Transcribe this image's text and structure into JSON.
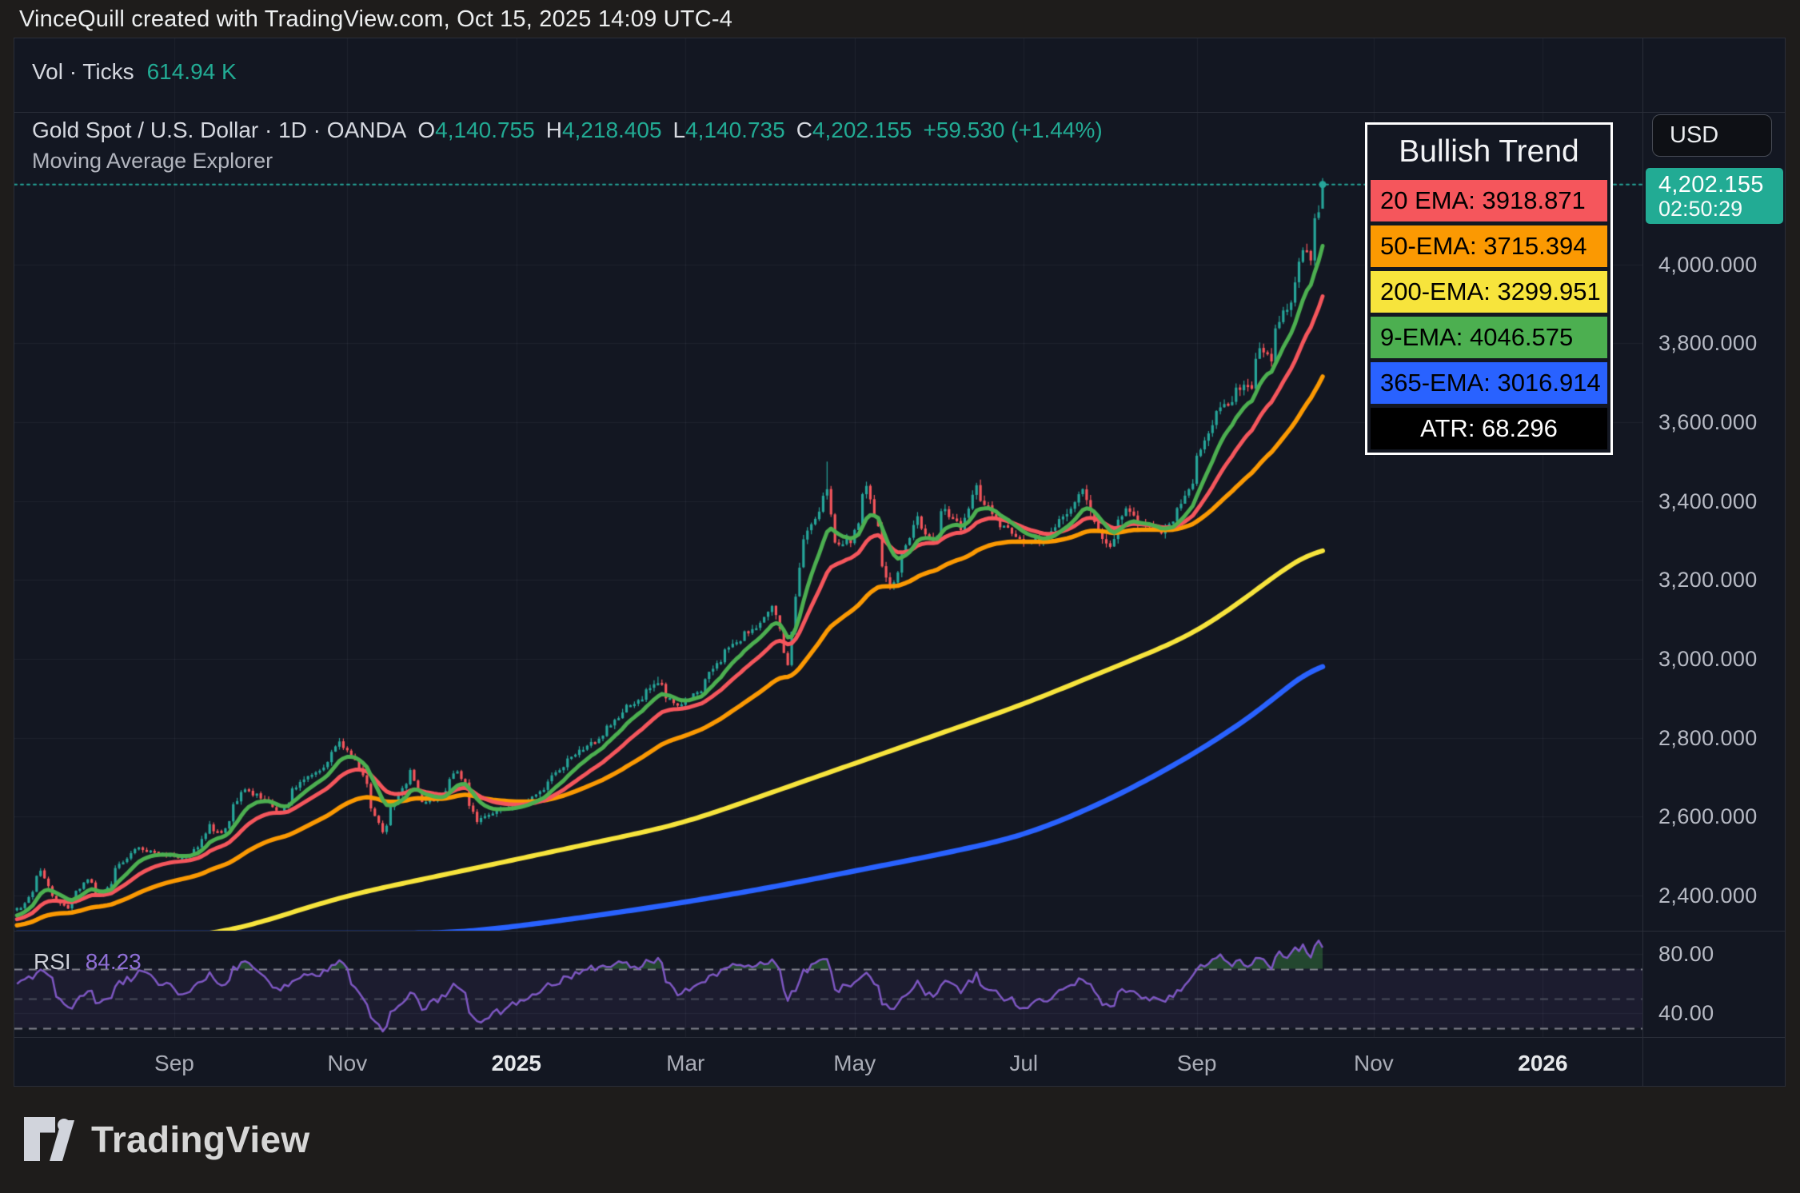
{
  "topbar": {
    "title": "VinceQuill created with TradingView.com, Oct 15, 2025 14:09 UTC-4"
  },
  "volume_pane": {
    "legend": "Vol · Ticks",
    "value": "614.94 K"
  },
  "main_pane": {
    "symbol_line": "Gold Spot / U.S. Dollar · 1D · OANDA",
    "ohlc": [
      {
        "k": "O",
        "v": "4,140.755"
      },
      {
        "k": "H",
        "v": "4,218.405"
      },
      {
        "k": "L",
        "v": "4,140.735"
      },
      {
        "k": "C",
        "v": "4,202.155"
      }
    ],
    "change": "+59.530 (+1.44%)",
    "indicator_line": "Moving Average Explorer"
  },
  "trend_box": {
    "title": "Bullish Trend",
    "rows": [
      {
        "text": "20 EMA: 3918.871",
        "bg": "#f5565c",
        "fg": "#000000",
        "center": false
      },
      {
        "text": "50-EMA: 3715.394",
        "bg": "#fb9902",
        "fg": "#000000",
        "center": false
      },
      {
        "text": "200-EMA: 3299.951",
        "bg": "#f7e43c",
        "fg": "#000000",
        "center": false
      },
      {
        "text": "9-EMA: 4046.575",
        "bg": "#4caf50",
        "fg": "#000000",
        "center": false
      },
      {
        "text": "365-EMA: 3016.914",
        "bg": "#2962ff",
        "fg": "#000000",
        "center": false
      },
      {
        "text": "ATR: 68.296",
        "bg": "#000000",
        "fg": "#ffffff",
        "center": true
      }
    ]
  },
  "price_axis": {
    "currency_button": "USD",
    "last_price": "4,202.155",
    "countdown": "02:50:29",
    "badge_color": "#22ab94",
    "labels": [
      "4,000.000",
      "3,800.000",
      "3,600.000",
      "3,400.000",
      "3,200.000",
      "3,000.000",
      "2,800.000",
      "2,600.000",
      "2,400.000"
    ],
    "rsi_labels": [
      "80.00",
      "40.00"
    ]
  },
  "time_axis": {
    "ticks": [
      {
        "label": "Sep",
        "date": "2024-09-01",
        "bold": false
      },
      {
        "label": "Nov",
        "date": "2024-11-01",
        "bold": false
      },
      {
        "label": "2025",
        "date": "2025-01-01",
        "bold": true
      },
      {
        "label": "Mar",
        "date": "2025-03-01",
        "bold": false
      },
      {
        "label": "May",
        "date": "2025-05-01",
        "bold": false
      },
      {
        "label": "Jul",
        "date": "2025-07-01",
        "bold": false
      },
      {
        "label": "Sep",
        "date": "2025-09-01",
        "bold": false
      },
      {
        "label": "Nov",
        "date": "2025-11-01",
        "bold": false
      },
      {
        "label": "2026",
        "date": "2026-01-01",
        "bold": true
      }
    ]
  },
  "rsi_pane": {
    "label": "RSI",
    "value": "84.23"
  },
  "footer": {
    "brand": "TradingView"
  },
  "chart_data": {
    "type": "candlestick",
    "title": "Gold Spot / U.S. Dollar, 1D, OANDA",
    "xlabel": "",
    "ylabel": "USD",
    "x_range": [
      "2024-07-04",
      "2025-10-15"
    ],
    "y_axis": {
      "min": 2300,
      "max": 4330,
      "tick_step": 200,
      "ticks": [
        4000,
        3800,
        3600,
        3400,
        3200,
        3000,
        2800,
        2600,
        2400
      ]
    },
    "grid": true,
    "last_ohlc": {
      "open": 4140.755,
      "high": 4218.405,
      "low": 4140.735,
      "close": 4202.155,
      "change": 59.53,
      "change_pct": 1.44
    },
    "atr": 68.296,
    "colors": {
      "up": "#26a69a",
      "down": "#f5565c",
      "last_price_line": "#26a69a",
      "grid": "rgba(240,243,250,0.055)"
    },
    "close_path": [
      [
        "2024-07-04",
        2360
      ],
      [
        "2024-07-09",
        2370
      ],
      [
        "2024-07-16",
        2465
      ],
      [
        "2024-07-19",
        2400
      ],
      [
        "2024-07-25",
        2370
      ],
      [
        "2024-08-01",
        2440
      ],
      [
        "2024-08-06",
        2395
      ],
      [
        "2024-08-12",
        2470
      ],
      [
        "2024-08-16",
        2505
      ],
      [
        "2024-08-20",
        2520
      ],
      [
        "2024-08-27",
        2508
      ],
      [
        "2024-09-04",
        2495
      ],
      [
        "2024-09-10",
        2520
      ],
      [
        "2024-09-13",
        2578
      ],
      [
        "2024-09-18",
        2560
      ],
      [
        "2024-09-26",
        2672
      ],
      [
        "2024-10-01",
        2655
      ],
      [
        "2024-10-09",
        2610
      ],
      [
        "2024-10-16",
        2690
      ],
      [
        "2024-10-23",
        2718
      ],
      [
        "2024-10-30",
        2786,
        2795
      ],
      [
        "2024-11-05",
        2745
      ],
      [
        "2024-11-14",
        2565
      ],
      [
        "2024-11-21",
        2672
      ],
      [
        "2024-11-25",
        2715
      ],
      [
        "2024-11-28",
        2635
      ],
      [
        "2024-12-05",
        2650
      ],
      [
        "2024-12-11",
        2718
      ],
      [
        "2024-12-18",
        2590
      ],
      [
        "2024-12-27",
        2622
      ],
      [
        "2025-01-06",
        2640
      ],
      [
        "2025-01-16",
        2715
      ],
      [
        "2025-01-24",
        2772
      ],
      [
        "2025-01-31",
        2800
      ],
      [
        "2025-02-07",
        2862
      ],
      [
        "2025-02-14",
        2900
      ],
      [
        "2025-02-20",
        2940,
        2955
      ],
      [
        "2025-02-27",
        2880
      ],
      [
        "2025-03-06",
        2912
      ],
      [
        "2025-03-13",
        2985
      ],
      [
        "2025-03-20",
        3045
      ],
      [
        "2025-03-28",
        3085
      ],
      [
        "2025-04-02",
        3130
      ],
      [
        "2025-04-08",
        2985
      ],
      [
        "2025-04-11",
        3235
      ],
      [
        "2025-04-16",
        3340
      ],
      [
        "2025-04-22",
        3430,
        3500
      ],
      [
        "2025-04-24",
        3290
      ],
      [
        "2025-04-30",
        3300
      ],
      [
        "2025-05-06",
        3435
      ],
      [
        "2025-05-09",
        3330
      ],
      [
        "2025-05-14",
        3180
      ],
      [
        "2025-05-20",
        3290
      ],
      [
        "2025-05-23",
        3360
      ],
      [
        "2025-05-29",
        3290
      ],
      [
        "2025-06-02",
        3380
      ],
      [
        "2025-06-09",
        3330
      ],
      [
        "2025-06-13",
        3435
      ],
      [
        "2025-06-17",
        3390
      ],
      [
        "2025-06-24",
        3330
      ],
      [
        "2025-06-30",
        3300
      ],
      [
        "2025-07-08",
        3302
      ],
      [
        "2025-07-14",
        3355
      ],
      [
        "2025-07-22",
        3430
      ],
      [
        "2025-07-25",
        3340
      ],
      [
        "2025-07-31",
        3290
      ],
      [
        "2025-08-06",
        3375
      ],
      [
        "2025-08-11",
        3345
      ],
      [
        "2025-08-19",
        3320
      ],
      [
        "2025-08-26",
        3390
      ],
      [
        "2025-08-29",
        3445
      ],
      [
        "2025-09-02",
        3535
      ],
      [
        "2025-09-05",
        3590
      ],
      [
        "2025-09-09",
        3640
      ],
      [
        "2025-09-12",
        3645
      ],
      [
        "2025-09-16",
        3690
      ],
      [
        "2025-09-19",
        3685
      ],
      [
        "2025-09-23",
        3790
      ],
      [
        "2025-09-26",
        3760
      ],
      [
        "2025-09-30",
        3860
      ],
      [
        "2025-10-02",
        3890
      ],
      [
        "2025-10-06",
        3960
      ],
      [
        "2025-10-08",
        4040
      ],
      [
        "2025-10-10",
        4010
      ],
      [
        "2025-10-13",
        4110
      ],
      [
        "2025-10-14",
        4140.755
      ],
      [
        "2025-10-15",
        4202.155
      ]
    ],
    "ema_lines": [
      {
        "name": "9-EMA",
        "period": 9,
        "color": "#4caf50",
        "width": 5,
        "last": 4046.575,
        "start": 2345
      },
      {
        "name": "20 EMA",
        "period": 20,
        "color": "#f5565c",
        "width": 5,
        "last": 3918.871,
        "start": 2337
      },
      {
        "name": "50-EMA",
        "period": 50,
        "color": "#fb9902",
        "width": 5.5,
        "last": 3715.394,
        "start": 2323
      },
      {
        "name": "200-EMA",
        "period": 200,
        "color": "#f7e43c",
        "width": 6,
        "last": 3299.951,
        "path": [
          [
            "2024-07-04",
            2245
          ],
          [
            "2024-09-22",
            2310
          ],
          [
            "2024-11-01",
            2400
          ],
          [
            "2025-01-01",
            2492
          ],
          [
            "2025-03-01",
            2582
          ],
          [
            "2025-05-01",
            2734
          ],
          [
            "2025-07-01",
            2886
          ],
          [
            "2025-09-01",
            3067
          ],
          [
            "2025-10-15",
            3299.951
          ]
        ]
      },
      {
        "name": "365-EMA",
        "period": 365,
        "color": "#2962ff",
        "width": 6.5,
        "last": 3016.914,
        "path": [
          [
            "2024-12-10",
            2305
          ],
          [
            "2025-01-01",
            2322
          ],
          [
            "2025-02-01",
            2352
          ],
          [
            "2025-03-01",
            2382
          ],
          [
            "2025-04-01",
            2420
          ],
          [
            "2025-05-01",
            2462
          ],
          [
            "2025-06-01",
            2505
          ],
          [
            "2025-07-01",
            2552
          ],
          [
            "2025-08-01",
            2645
          ],
          [
            "2025-09-01",
            2765
          ],
          [
            "2025-10-01",
            2910
          ],
          [
            "2025-10-15",
            3016.914
          ]
        ]
      }
    ],
    "rsi": {
      "value": 84.23,
      "line_color": "#7e57c2",
      "levels": [
        70,
        50,
        30
      ],
      "scale_ticks": [
        80,
        40
      ],
      "band_color": "rgba(126,87,194,0.09)",
      "overbought_fill": "rgba(67,160,71,0.35)",
      "oversold_fill": "rgba(244,84,90,0.32)",
      "path": [
        [
          "2024-07-04",
          55
        ],
        [
          "2024-07-10",
          63
        ],
        [
          "2024-07-17",
          68
        ],
        [
          "2024-07-25",
          42
        ],
        [
          "2024-08-01",
          55
        ],
        [
          "2024-08-06",
          46
        ],
        [
          "2024-08-13",
          60
        ],
        [
          "2024-08-20",
          68
        ],
        [
          "2024-08-27",
          60
        ],
        [
          "2024-09-04",
          54
        ],
        [
          "2024-09-13",
          66
        ],
        [
          "2024-09-18",
          59
        ],
        [
          "2024-09-26",
          75
        ],
        [
          "2024-10-03",
          64
        ],
        [
          "2024-10-09",
          56
        ],
        [
          "2024-10-16",
          65
        ],
        [
          "2024-10-23",
          67
        ],
        [
          "2024-10-30",
          74
        ],
        [
          "2024-11-05",
          58
        ],
        [
          "2024-11-14",
          28
        ],
        [
          "2024-11-21",
          48
        ],
        [
          "2024-11-25",
          55
        ],
        [
          "2024-11-28",
          44
        ],
        [
          "2024-12-05",
          50
        ],
        [
          "2024-12-11",
          60
        ],
        [
          "2024-12-18",
          34
        ],
        [
          "2024-12-24",
          40
        ],
        [
          "2024-12-31",
          45
        ],
        [
          "2025-01-08",
          53
        ],
        [
          "2025-01-16",
          62
        ],
        [
          "2025-01-24",
          68
        ],
        [
          "2025-01-31",
          71
        ],
        [
          "2025-02-07",
          74
        ],
        [
          "2025-02-14",
          72
        ],
        [
          "2025-02-20",
          76
        ],
        [
          "2025-02-27",
          54
        ],
        [
          "2025-03-06",
          58
        ],
        [
          "2025-03-13",
          67
        ],
        [
          "2025-03-20",
          72
        ],
        [
          "2025-03-28",
          74
        ],
        [
          "2025-04-02",
          76
        ],
        [
          "2025-04-08",
          50
        ],
        [
          "2025-04-11",
          61
        ],
        [
          "2025-04-16",
          72
        ],
        [
          "2025-04-22",
          78
        ],
        [
          "2025-04-24",
          56
        ],
        [
          "2025-04-30",
          58
        ],
        [
          "2025-05-06",
          67
        ],
        [
          "2025-05-09",
          57
        ],
        [
          "2025-05-14",
          42
        ],
        [
          "2025-05-20",
          52
        ],
        [
          "2025-05-23",
          60
        ],
        [
          "2025-05-29",
          51
        ],
        [
          "2025-06-02",
          61
        ],
        [
          "2025-06-09",
          55
        ],
        [
          "2025-06-13",
          66
        ],
        [
          "2025-06-17",
          59
        ],
        [
          "2025-06-24",
          50
        ],
        [
          "2025-06-30",
          45
        ],
        [
          "2025-07-08",
          48
        ],
        [
          "2025-07-14",
          56
        ],
        [
          "2025-07-22",
          65
        ],
        [
          "2025-07-25",
          54
        ],
        [
          "2025-07-31",
          44
        ],
        [
          "2025-08-06",
          56
        ],
        [
          "2025-08-11",
          52
        ],
        [
          "2025-08-19",
          47
        ],
        [
          "2025-08-26",
          57
        ],
        [
          "2025-08-29",
          64
        ],
        [
          "2025-09-02",
          71
        ],
        [
          "2025-09-05",
          75
        ],
        [
          "2025-09-09",
          78
        ],
        [
          "2025-09-12",
          73
        ],
        [
          "2025-09-16",
          76
        ],
        [
          "2025-09-19",
          71
        ],
        [
          "2025-09-23",
          79
        ],
        [
          "2025-09-26",
          72
        ],
        [
          "2025-09-30",
          80
        ],
        [
          "2025-10-02",
          78
        ],
        [
          "2025-10-06",
          82
        ],
        [
          "2025-10-08",
          85
        ],
        [
          "2025-10-10",
          79
        ],
        [
          "2025-10-13",
          86
        ],
        [
          "2025-10-14",
          88
        ],
        [
          "2025-10-15",
          84.23
        ]
      ]
    }
  }
}
